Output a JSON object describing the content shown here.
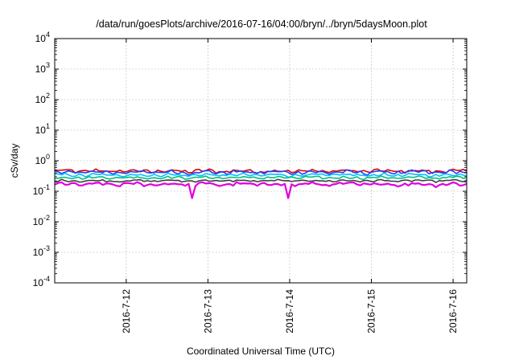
{
  "chart_data": {
    "type": "line",
    "title": "/data/run/goesPlots/archive/2016-07-16/04:00/bryn/../bryn/5daysMoon.plot",
    "xlabel": "Coordinated Universal Time (UTC)",
    "ylabel": "cSv/day",
    "yscale": "log",
    "ylim": [
      0.0001,
      10000
    ],
    "xlim": [
      "2016-07-11 03:00",
      "2016-07-16 04:00"
    ],
    "y_ticks": [
      {
        "base": "10",
        "exp": "-4",
        "value": 0.0001
      },
      {
        "base": "10",
        "exp": "-3",
        "value": 0.001
      },
      {
        "base": "10",
        "exp": "-2",
        "value": 0.01
      },
      {
        "base": "10",
        "exp": "-1",
        "value": 0.1
      },
      {
        "base": "10",
        "exp": "0",
        "value": 1
      },
      {
        "base": "10",
        "exp": "1",
        "value": 10
      },
      {
        "base": "10",
        "exp": "2",
        "value": 100
      },
      {
        "base": "10",
        "exp": "3",
        "value": 1000
      },
      {
        "base": "10",
        "exp": "4",
        "value": 10000
      }
    ],
    "x_ticks": [
      "2016-7-12",
      "2016-7-13",
      "2016-7-14",
      "2016-7-15",
      "2016-7-16"
    ],
    "grid": true,
    "series": [
      {
        "color": "#e00000",
        "level": 0.46,
        "spread": 0.12
      },
      {
        "color": "#2040ff",
        "level": 0.42,
        "spread": 0.12
      },
      {
        "color": "#00c0ff",
        "level": 0.34,
        "spread": 0.1
      },
      {
        "color": "#00c080",
        "level": 0.28,
        "spread": 0.08
      },
      {
        "color": "#404040",
        "level": 0.22,
        "spread": 0.07
      },
      {
        "color": "#e000e0",
        "level": 0.17,
        "spread": 0.12
      }
    ],
    "points_per_series": 121
  }
}
